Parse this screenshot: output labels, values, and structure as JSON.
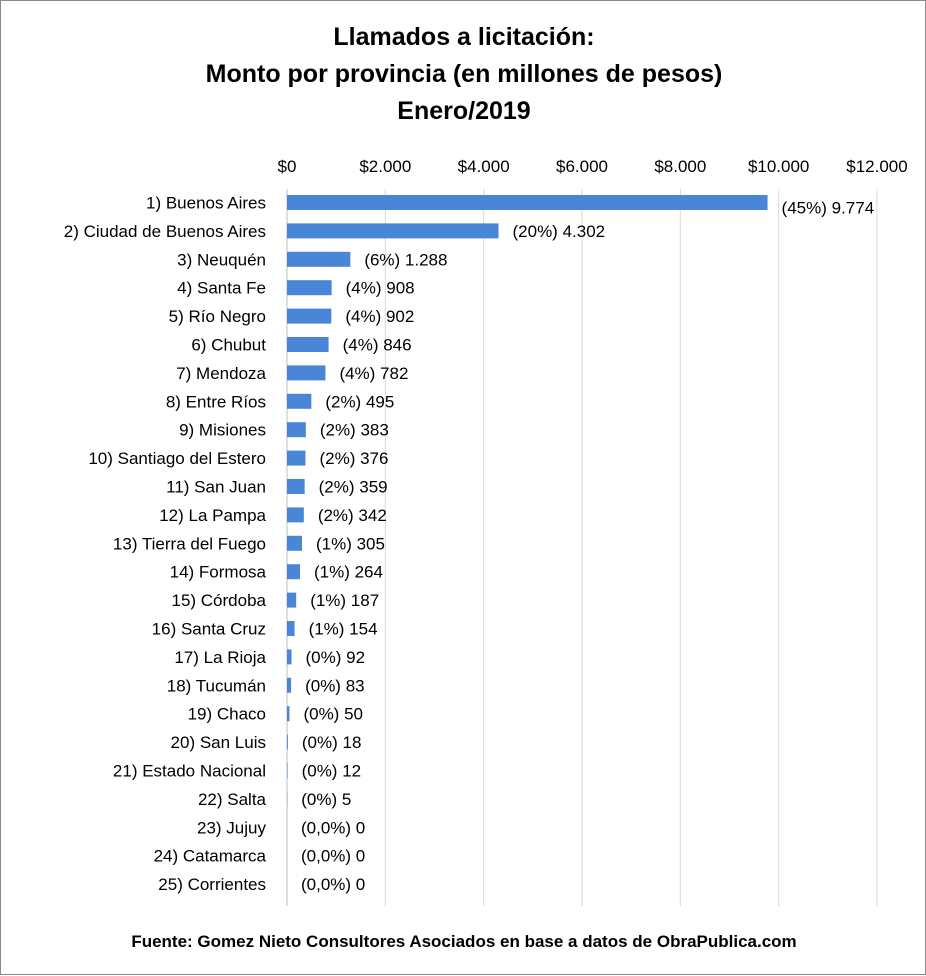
{
  "chart_data": {
    "type": "bar",
    "orientation": "horizontal",
    "title": "Llamados a licitación:",
    "subtitle": "Monto por provincia (en millones de pesos)",
    "period": "Enero/2019",
    "source": "Fuente: Gomez Nieto Consultores Asociados en base a datos de ObraPublica.com",
    "bar_color": "#4A86D8",
    "grid": true,
    "xlim": [
      0,
      12000
    ],
    "x_ticks": [
      {
        "value": 0,
        "label": "$0"
      },
      {
        "value": 2000,
        "label": "$2.000"
      },
      {
        "value": 4000,
        "label": "$4.000"
      },
      {
        "value": 6000,
        "label": "$6.000"
      },
      {
        "value": 8000,
        "label": "$8.000"
      },
      {
        "value": 10000,
        "label": "$10.000"
      },
      {
        "value": 12000,
        "label": "$12.000"
      }
    ],
    "categories": [
      "1) Buenos Aires",
      "2) Ciudad de Buenos Aires",
      "3) Neuquén",
      "4) Santa Fe",
      "5) Río Negro",
      "6) Chubut",
      "7) Mendoza",
      "8) Entre Ríos",
      "9) Misiones",
      "10) Santiago del Estero",
      "11) San Juan",
      "12) La Pampa",
      "13) Tierra del Fuego",
      "14) Formosa",
      "15) Córdoba",
      "16) Santa Cruz",
      "17) La Rioja",
      "18) Tucumán",
      "19) Chaco",
      "20) San Luis",
      "21) Estado Nacional",
      "22) Salta",
      "23) Jujuy",
      "24) Catamarca",
      "25) Corrientes"
    ],
    "values": [
      9774,
      4302,
      1288,
      908,
      902,
      846,
      782,
      495,
      383,
      376,
      359,
      342,
      305,
      264,
      187,
      154,
      92,
      83,
      50,
      18,
      12,
      5,
      0,
      0,
      0
    ],
    "data_labels": [
      "(45%) 9.774",
      "(20%) 4.302",
      "(6%) 1.288",
      "(4%) 908",
      "(4%) 902",
      "(4%) 846",
      "(4%) 782",
      "(2%) 495",
      "(2%) 383",
      "(2%) 376",
      "(2%) 359",
      "(2%) 342",
      "(1%) 305",
      "(1%) 264",
      "(1%) 187",
      "(1%) 154",
      "(0%) 92",
      "(0%) 83",
      "(0%) 50",
      "(0%) 18",
      "(0%) 12",
      "(0%) 5",
      "(0,0%) 0",
      "(0,0%) 0",
      "(0,0%) 0"
    ]
  }
}
